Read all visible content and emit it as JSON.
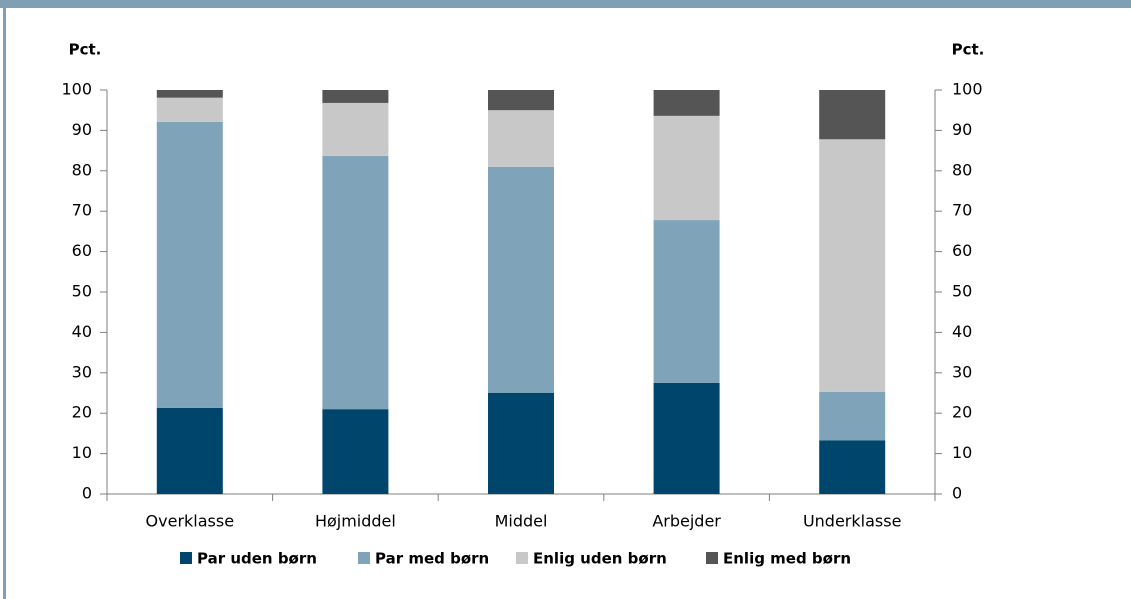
{
  "chart_data": {
    "type": "stacked_bar",
    "ylabel": "Pct.",
    "y2label": "Pct.",
    "categories": [
      "Overklasse",
      "Højmiddel",
      "Middel",
      "Arbejder",
      "Underklasse"
    ],
    "series": [
      {
        "name": "Par uden børn",
        "color": "#00456b",
        "values": [
          21.3,
          21.0,
          25.0,
          27.5,
          13.3
        ]
      },
      {
        "name": "Par med børn",
        "color": "#7fa3b9",
        "values": [
          70.8,
          62.7,
          56.0,
          40.3,
          12.0
        ]
      },
      {
        "name": "Enlig uden børn",
        "color": "#c8c8c8",
        "values": [
          6.0,
          13.1,
          14.0,
          25.8,
          62.5
        ]
      },
      {
        "name": "Enlig med børn",
        "color": "#555555",
        "values": [
          1.9,
          3.2,
          5.0,
          6.4,
          12.2
        ]
      }
    ],
    "ylim": [
      0,
      100
    ],
    "yticks": [
      0,
      10,
      20,
      30,
      40,
      50,
      60,
      70,
      80,
      90,
      100
    ],
    "y2lim": [
      0,
      100
    ],
    "y2ticks": [
      0,
      10,
      20,
      30,
      40,
      50,
      60,
      70,
      80,
      90,
      100
    ],
    "legend": "bottom"
  }
}
